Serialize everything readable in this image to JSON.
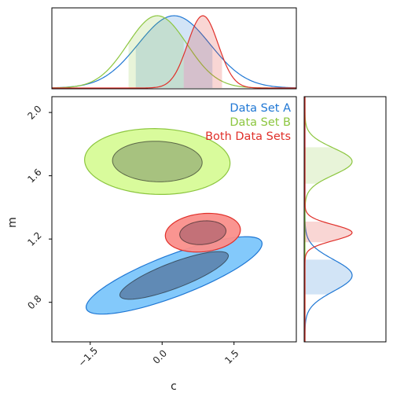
{
  "chart_data": {
    "type": "corner-contour",
    "xlabel": "c",
    "ylabel": "m",
    "xlim": [
      -2.3,
      2.8
    ],
    "ylim": [
      0.55,
      2.1
    ],
    "x_ticks": [
      -1.5,
      0.0,
      1.5
    ],
    "x_tick_labels": [
      "−1.5",
      "0.0",
      "1.5"
    ],
    "y_ticks": [
      0.8,
      1.2,
      1.6,
      2.0
    ],
    "y_tick_labels": [
      "0.8",
      "1.2",
      "1.6",
      "2.0"
    ],
    "legend": {
      "placement": "top-right",
      "entries": [
        "Data Set A",
        "Data Set B",
        "Both Data Sets"
      ]
    },
    "series": [
      {
        "name": "Data Set A",
        "color": "#1f77d4",
        "fill_outer": "#7cc6fb",
        "fill_inner": "#5a7fa8",
        "mean_c": 0.25,
        "sd_c": 0.75,
        "mean_m": 0.97,
        "sd_m": 0.1,
        "rho": 0.82,
        "c_interval_68": [
          -0.55,
          1.05
        ],
        "m_interval_68": [
          0.85,
          1.07
        ]
      },
      {
        "name": "Data Set B",
        "color": "#8cc63f",
        "fill_outer": "#d7fb97",
        "fill_inner": "#9db77a",
        "mean_c": -0.1,
        "sd_c": 0.62,
        "mean_m": 1.69,
        "sd_m": 0.085,
        "rho": -0.05,
        "c_interval_68": [
          -0.7,
          0.45
        ],
        "m_interval_68": [
          1.55,
          1.78
        ]
      },
      {
        "name": "Both Data Sets",
        "color": "#e0302a",
        "fill_outer": "#fa8f8b",
        "fill_inner": "#b96b73",
        "mean_c": 0.85,
        "sd_c": 0.32,
        "mean_m": 1.24,
        "sd_m": 0.05,
        "rho": 0.15,
        "c_interval_68": [
          0.45,
          1.25
        ],
        "m_interval_68": [
          1.18,
          1.31
        ]
      }
    ]
  }
}
